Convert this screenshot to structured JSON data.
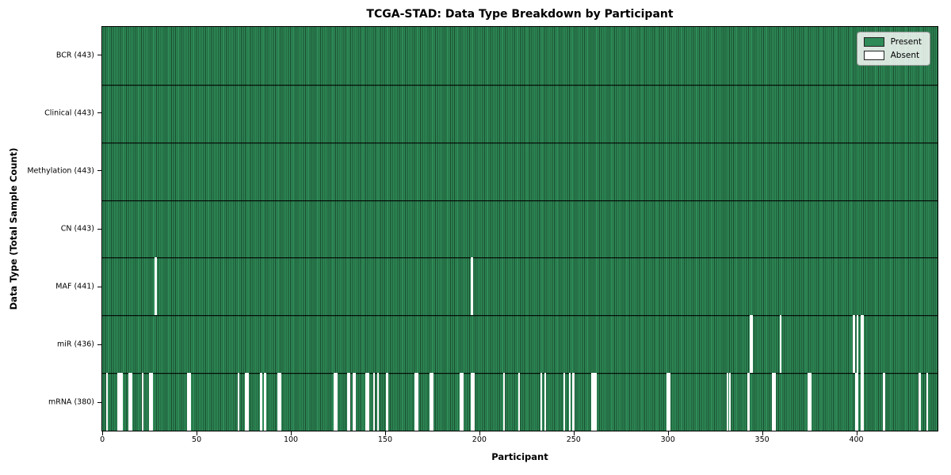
{
  "chart_data": {
    "type": "heatmap",
    "title": "TCGA-STAD: Data Type Breakdown by Participant",
    "xlabel": "Participant",
    "ylabel": "Data Type (Total Sample Count)",
    "participants_total": 443,
    "xlim": [
      -0.5,
      443.5
    ],
    "x_ticks": [
      0,
      50,
      100,
      150,
      200,
      250,
      300,
      350,
      400
    ],
    "grid": false,
    "legend": {
      "position": "upper right",
      "entries": [
        {
          "label": "Present",
          "color": "#2E8B57"
        },
        {
          "label": "Absent",
          "color": "#FFFFFF"
        }
      ]
    },
    "colors": {
      "present": "#2E8B57",
      "absent": "#FFFFFF",
      "bar_edge": "#1B4B2F",
      "separator": "#000000",
      "axes": "#000000"
    },
    "rows": [
      {
        "data_type": "BCR",
        "label": "BCR (443)",
        "present_count": 443,
        "absent_count": 0,
        "absent_participants": []
      },
      {
        "data_type": "Clinical",
        "label": "Clinical (443)",
        "present_count": 443,
        "absent_count": 0,
        "absent_participants": []
      },
      {
        "data_type": "Methylation",
        "label": "Methylation (443)",
        "present_count": 443,
        "absent_count": 0,
        "absent_participants": []
      },
      {
        "data_type": "CN",
        "label": "CN (443)",
        "present_count": 443,
        "absent_count": 0,
        "absent_participants": []
      },
      {
        "data_type": "MAF",
        "label": "MAF (441)",
        "present_count": 441,
        "absent_count": 2,
        "absent_participants": [
          28,
          196
        ]
      },
      {
        "data_type": "miR",
        "label": "miR (436)",
        "present_count": 436,
        "absent_count": 7,
        "absent_participants": [
          344,
          345,
          360,
          399,
          401,
          403,
          404
        ]
      },
      {
        "data_type": "mRNA",
        "label": "mRNA (380)",
        "present_count": 380,
        "absent_count": 63,
        "absent_participants": [
          2,
          8,
          9,
          10,
          14,
          15,
          21,
          25,
          26,
          45,
          46,
          72,
          76,
          77,
          84,
          86,
          93,
          94,
          123,
          124,
          130,
          131,
          133,
          134,
          140,
          141,
          144,
          146,
          151,
          166,
          167,
          174,
          175,
          190,
          191,
          196,
          197,
          213,
          221,
          233,
          235,
          245,
          248,
          250,
          260,
          261,
          262,
          300,
          301,
          332,
          333,
          343,
          356,
          357,
          375,
          376,
          400,
          401,
          403,
          404,
          415,
          434,
          438
        ]
      }
    ]
  }
}
